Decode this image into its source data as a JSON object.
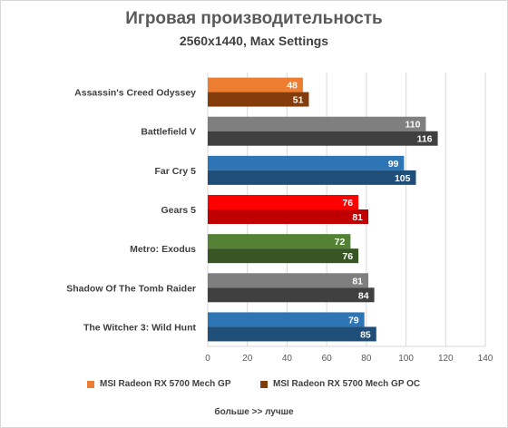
{
  "chart_data": {
    "type": "bar",
    "orientation": "horizontal",
    "title": "Игровая производительность",
    "subtitle": "2560x1440, Max Settings",
    "categories": [
      "Assassin's Creed Odyssey",
      "Battlefield V",
      "Far Cry 5",
      "Gears 5",
      "Metro: Exodus",
      "Shadow Of The Tomb Raider",
      "The Witcher 3: Wild Hunt"
    ],
    "series": [
      {
        "name": "MSI Radeon RX 5700 Mech GP",
        "values": [
          48,
          110,
          99,
          76,
          72,
          81,
          79
        ]
      },
      {
        "name": "MSI Radeon RX 5700 Mech GP OC",
        "values": [
          51,
          116,
          105,
          81,
          76,
          84,
          85
        ]
      }
    ],
    "bar_colors": [
      [
        "#ed7d31",
        "#843c0c"
      ],
      [
        "#7f7f7f",
        "#404040"
      ],
      [
        "#2e75b6",
        "#1f4e79"
      ],
      [
        "#ff0000",
        "#c00000"
      ],
      [
        "#548235",
        "#375623"
      ],
      [
        "#7f7f7f",
        "#404040"
      ],
      [
        "#2e75b6",
        "#1f4e79"
      ]
    ],
    "legend_colors": [
      "#ed7d31",
      "#843c0c"
    ],
    "xlim": [
      0,
      140
    ],
    "xticks": [
      0,
      20,
      40,
      60,
      80,
      100,
      120,
      140
    ],
    "grid": true,
    "legend_position": "bottom",
    "footnote": "больше >> лучше"
  }
}
